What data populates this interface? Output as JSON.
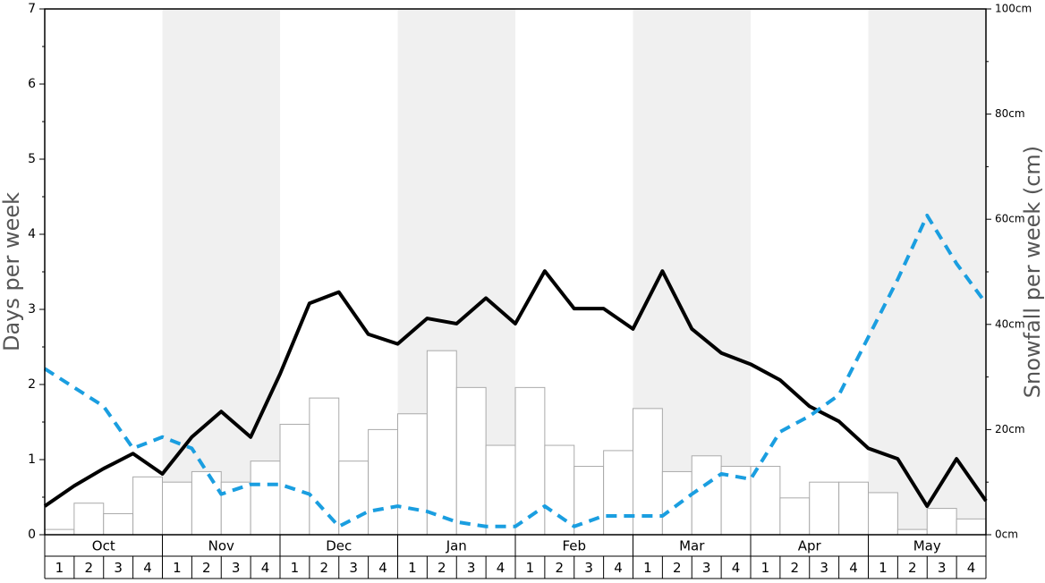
{
  "chart_data": {
    "type": "bar-line",
    "ylabel": "Days per week",
    "y2label": "Snowfall per week (cm)",
    "months": [
      "Oct",
      "Nov",
      "Dec",
      "Jan",
      "Feb",
      "Mar",
      "Apr",
      "May"
    ],
    "categories": [
      "1",
      "2",
      "3",
      "4",
      "1",
      "2",
      "3",
      "4",
      "1",
      "2",
      "3",
      "4",
      "1",
      "2",
      "3",
      "4",
      "1",
      "2",
      "3",
      "4",
      "1",
      "2",
      "3",
      "4",
      "1",
      "2",
      "3",
      "4",
      "1",
      "2",
      "3",
      "4"
    ],
    "x": [
      0,
      1,
      2,
      3,
      4,
      5,
      6,
      7,
      8,
      9,
      10,
      11,
      12,
      13,
      14,
      15,
      16,
      17,
      18,
      19,
      20,
      21,
      22,
      23,
      24,
      25,
      26,
      27,
      28,
      29,
      30,
      31,
      32
    ],
    "xlim": [
      0,
      32
    ],
    "ylim": [
      0,
      7
    ],
    "yticks": [
      0,
      1,
      2,
      3,
      4,
      5,
      6,
      7
    ],
    "y2lim": [
      0,
      100
    ],
    "y2ticks": [
      {
        "value": 0,
        "label": "0cm"
      },
      {
        "value": 20,
        "label": "20cm"
      },
      {
        "value": 40,
        "label": "40cm"
      },
      {
        "value": 60,
        "label": "60cm"
      },
      {
        "value": 80,
        "label": "80cm"
      },
      {
        "value": 100,
        "label": "100cm"
      }
    ],
    "bars": {
      "axis": "y2",
      "color": "#ffffff",
      "edgecolor": "#aaaaaa",
      "values": [
        1,
        6,
        4,
        11,
        10,
        12,
        10,
        14,
        21,
        26,
        14,
        20,
        23,
        35,
        28,
        17,
        28,
        17,
        13,
        16,
        24,
        12,
        15,
        13,
        13,
        7,
        10,
        10,
        8,
        1,
        5,
        3
      ]
    },
    "series": [
      {
        "color": "#000000",
        "dashed": false,
        "values": [
          0.38,
          0.65,
          0.88,
          1.08,
          0.81,
          1.3,
          1.64,
          1.3,
          2.14,
          3.08,
          3.23,
          2.67,
          2.54,
          2.88,
          2.81,
          3.15,
          2.81,
          3.51,
          3.01,
          3.01,
          2.74,
          3.51,
          2.74,
          2.42,
          2.27,
          2.06,
          1.71,
          1.51,
          1.15,
          1.01,
          0.38,
          1.01,
          0.45
        ]
      },
      {
        "color": "#1a9ee0",
        "dashed": true,
        "values": [
          2.21,
          1.96,
          1.71,
          1.15,
          1.3,
          1.15,
          0.54,
          0.67,
          0.67,
          0.54,
          0.11,
          0.31,
          0.38,
          0.31,
          0.17,
          0.11,
          0.11,
          0.38,
          0.11,
          0.25,
          0.25,
          0.25,
          0.54,
          0.81,
          0.74,
          1.37,
          1.58,
          1.86,
          2.63,
          3.4,
          4.25,
          3.61,
          3.08
        ]
      }
    ]
  }
}
